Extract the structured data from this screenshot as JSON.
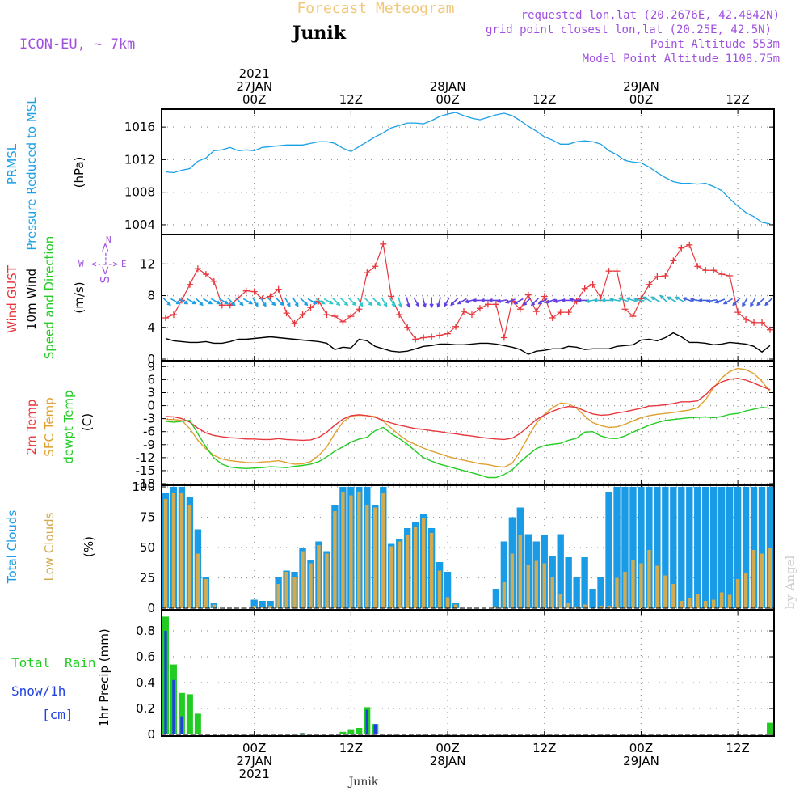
{
  "header": {
    "title": "Forecast Meteogram",
    "location": "Junik",
    "model": "ICON-EU, ~ 7km",
    "requested": "requested lon,lat (20.2676E, 42.4842N)",
    "gridpoint": "grid point closest lon,lat (20.25E, 42.5N)",
    "point_alt": "Point Altitude 553m",
    "model_alt": "Model Point Altitude 1108.75m",
    "footer_location": "Junik",
    "watermark": "by Angel"
  },
  "time_axis": {
    "top_labels": [
      {
        "h": 0,
        "lines": [
          "2021",
          "27JAN",
          "00Z"
        ]
      },
      {
        "h": 12,
        "lines": [
          "12Z"
        ]
      },
      {
        "h": 24,
        "lines": [
          "28JAN",
          "00Z"
        ]
      },
      {
        "h": 36,
        "lines": [
          "12Z"
        ]
      },
      {
        "h": 48,
        "lines": [
          "29JAN",
          "00Z"
        ]
      },
      {
        "h": 60,
        "lines": [
          "12Z"
        ]
      }
    ],
    "bottom_labels": [
      {
        "h": 0,
        "lines": [
          "00Z",
          "27JAN",
          "2021"
        ]
      },
      {
        "h": 12,
        "lines": [
          "12Z"
        ]
      },
      {
        "h": 24,
        "lines": [
          "00Z",
          "28JAN"
        ]
      },
      {
        "h": 36,
        "lines": [
          "12Z"
        ]
      },
      {
        "h": 48,
        "lines": [
          "00Z",
          "29JAN"
        ]
      },
      {
        "h": 60,
        "lines": [
          "12Z"
        ]
      }
    ],
    "start_hour": -11.5,
    "end_hour": 64.5
  },
  "colors": {
    "pressure": "#1aa0e6",
    "gust": "#e8373c",
    "wind": "#000000",
    "temp": "#e8373c",
    "sfc": "#e0a030",
    "dewpt": "#22cc22",
    "total_clouds": "#1a9be6",
    "low_clouds": "#d2aa50",
    "rain": "#22cc22",
    "snow": "#2040e0",
    "purple": "#a050e0",
    "orange_title": "#f2c878"
  },
  "chart_data": [
    {
      "type": "line",
      "name": "pressure",
      "labels": [
        "PRMSL",
        "Pressure Reduced to MSL",
        "(hPa)"
      ],
      "ylim": [
        1003,
        1018
      ],
      "yticks": [
        1004,
        1008,
        1012,
        1016
      ],
      "x": [
        -11,
        -10,
        -9,
        -8,
        -7,
        -6,
        -5,
        -4,
        -3,
        -2,
        -1,
        0,
        1,
        2,
        3,
        4,
        5,
        6,
        7,
        8,
        9,
        10,
        11,
        12,
        13,
        14,
        15,
        16,
        17,
        18,
        19,
        20,
        21,
        22,
        23,
        24,
        25,
        26,
        27,
        28,
        29,
        30,
        31,
        32,
        33,
        34,
        35,
        36,
        37,
        38,
        39,
        40,
        41,
        42,
        43,
        44,
        45,
        46,
        47,
        48,
        49,
        50,
        51,
        52,
        53,
        54,
        55,
        56,
        57,
        58,
        59,
        60,
        61,
        62,
        63,
        64
      ],
      "values": [
        1010.5,
        1010.4,
        1010.7,
        1010.9,
        1011.8,
        1012.2,
        1013.1,
        1013.2,
        1013.5,
        1013.1,
        1013.2,
        1013.1,
        1013.5,
        1013.6,
        1013.7,
        1013.8,
        1013.8,
        1013.8,
        1014.0,
        1014.2,
        1014.2,
        1014.0,
        1013.4,
        1013.0,
        1013.6,
        1014.2,
        1014.8,
        1015.3,
        1015.9,
        1016.2,
        1016.5,
        1016.5,
        1016.4,
        1016.8,
        1017.3,
        1017.6,
        1017.8,
        1017.4,
        1017.1,
        1016.9,
        1017.2,
        1017.5,
        1017.7,
        1017.4,
        1016.8,
        1016.1,
        1015.5,
        1014.8,
        1014.4,
        1013.9,
        1013.9,
        1014.2,
        1014.3,
        1014.2,
        1013.9,
        1013.1,
        1012.6,
        1011.9,
        1011.7,
        1011.6,
        1011.1,
        1010.4,
        1009.8,
        1009.3,
        1009.1,
        1009.1,
        1009.0,
        1009.1,
        1008.7,
        1008.2,
        1007.2,
        1006.3,
        1005.5,
        1005.0,
        1004.3,
        1004.1
      ]
    },
    {
      "type": "line",
      "name": "wind",
      "labels": [
        "Wind GUST",
        "10m Wind",
        "Speed and Direction",
        "(m/s)"
      ],
      "ylim": [
        0,
        15.5
      ],
      "yticks": [
        0,
        4,
        8,
        12
      ],
      "compass": {
        "north": "N",
        "south": "S",
        "west": "W",
        "east": "E"
      },
      "x": [
        -11,
        -10,
        -9,
        -8,
        -7,
        -6,
        -5,
        -4,
        -3,
        -2,
        -1,
        0,
        1,
        2,
        3,
        4,
        5,
        6,
        7,
        8,
        9,
        10,
        11,
        12,
        13,
        14,
        15,
        16,
        17,
        18,
        19,
        20,
        21,
        22,
        23,
        24,
        25,
        26,
        27,
        28,
        29,
        30,
        31,
        32,
        33,
        34,
        35,
        36,
        37,
        38,
        39,
        40,
        41,
        42,
        43,
        44,
        45,
        46,
        47,
        48,
        49,
        50,
        51,
        52,
        53,
        54,
        55,
        56,
        57,
        58,
        59,
        60,
        61,
        62,
        63,
        64
      ],
      "gust": [
        5.2,
        5.6,
        7.4,
        9.4,
        11.4,
        10.7,
        9.8,
        6.8,
        6.8,
        7.7,
        8.6,
        8.5,
        7.6,
        7.9,
        8.8,
        5.8,
        4.5,
        5.6,
        6.5,
        7.3,
        5.6,
        5.4,
        4.7,
        5.4,
        6.3,
        10.9,
        11.7,
        14.5,
        7.9,
        5.6,
        4.0,
        2.5,
        2.7,
        2.8,
        3.0,
        3.2,
        4.1,
        6.0,
        5.6,
        6.4,
        6.9,
        6.9,
        2.7,
        7.3,
        6.3,
        8.1,
        6.0,
        7.9,
        5.2,
        5.9,
        5.9,
        7.3,
        8.9,
        9.4,
        7.7,
        11.1,
        11.1,
        6.3,
        5.4,
        7.6,
        9.4,
        10.4,
        10.5,
        12.4,
        14.0,
        14.4,
        11.7,
        11.2,
        11.2,
        10.7,
        10.5,
        5.9,
        5.0,
        4.6,
        4.6,
        3.7
      ],
      "speed": [
        2.6,
        2.3,
        2.2,
        2.1,
        2.1,
        2.2,
        2.0,
        2.0,
        2.2,
        2.5,
        2.5,
        2.6,
        2.7,
        2.8,
        2.7,
        2.6,
        2.5,
        2.4,
        2.3,
        2.2,
        2.0,
        1.2,
        1.5,
        1.4,
        2.5,
        2.3,
        1.6,
        1.3,
        1.0,
        0.9,
        1.0,
        1.3,
        1.6,
        1.7,
        1.9,
        1.9,
        1.8,
        1.8,
        1.9,
        2.0,
        2.0,
        1.9,
        1.7,
        1.5,
        1.2,
        0.6,
        1.0,
        1.1,
        1.3,
        1.3,
        1.6,
        1.5,
        1.2,
        1.3,
        1.3,
        1.3,
        1.6,
        1.7,
        1.8,
        2.4,
        2.5,
        2.3,
        2.7,
        3.3,
        2.8,
        2.1,
        2.1,
        2.0,
        1.8,
        1.9,
        2.1,
        2.0,
        1.9,
        1.6,
        0.9,
        1.7
      ],
      "direction_deg": [
        315,
        300,
        300,
        300,
        315,
        300,
        300,
        300,
        315,
        315,
        300,
        330,
        330,
        315,
        315,
        330,
        330,
        315,
        300,
        300,
        300,
        315,
        315,
        315,
        330,
        315,
        315,
        330,
        330,
        345,
        345,
        330,
        345,
        0,
        15,
        30,
        45,
        60,
        75,
        90,
        90,
        90,
        80,
        70,
        60,
        45,
        45,
        60,
        70,
        80,
        90,
        100,
        90,
        80,
        90,
        90,
        100,
        110,
        110,
        100,
        120,
        120,
        135,
        120,
        120,
        110,
        100,
        90,
        80,
        70,
        60,
        45,
        30,
        30,
        45,
        45
      ]
    },
    {
      "type": "line",
      "name": "temperature",
      "labels": [
        "2m Temp",
        "SFC Temp",
        "dewpt Temp",
        "(C)"
      ],
      "ylim": [
        -18,
        10
      ],
      "yticks": [
        -18,
        -15,
        -12,
        -9,
        -6,
        -3,
        0,
        3,
        6,
        9
      ],
      "x": [
        -11,
        -10,
        -9,
        -8,
        -7,
        -6,
        -5,
        -4,
        -3,
        -2,
        -1,
        0,
        1,
        2,
        3,
        4,
        5,
        6,
        7,
        8,
        9,
        10,
        11,
        12,
        13,
        14,
        15,
        16,
        17,
        18,
        19,
        20,
        21,
        22,
        23,
        24,
        25,
        26,
        27,
        28,
        29,
        30,
        31,
        32,
        33,
        34,
        35,
        36,
        37,
        38,
        39,
        40,
        41,
        42,
        43,
        44,
        45,
        46,
        47,
        48,
        49,
        50,
        51,
        52,
        53,
        54,
        55,
        56,
        57,
        58,
        59,
        60,
        61,
        62,
        63,
        64
      ],
      "temp_2m": [
        -2.5,
        -2.6,
        -3.0,
        -3.8,
        -5.2,
        -6.3,
        -6.9,
        -7.2,
        -7.4,
        -7.5,
        -7.7,
        -7.7,
        -7.8,
        -7.8,
        -7.6,
        -7.8,
        -7.9,
        -8.0,
        -7.9,
        -7.3,
        -6.1,
        -4.5,
        -3.1,
        -2.3,
        -2.1,
        -2.3,
        -2.7,
        -3.4,
        -4.0,
        -4.5,
        -4.9,
        -5.3,
        -5.5,
        -5.8,
        -6.0,
        -6.3,
        -6.5,
        -6.8,
        -7.0,
        -7.3,
        -7.5,
        -7.7,
        -7.8,
        -7.5,
        -6.4,
        -4.8,
        -3.2,
        -2.2,
        -1.3,
        -0.6,
        -0.2,
        -0.4,
        -1.2,
        -1.9,
        -2.2,
        -2.1,
        -1.7,
        -1.4,
        -1.0,
        -0.6,
        -0.1,
        0.0,
        0.2,
        0.5,
        0.9,
        0.9,
        1.1,
        2.5,
        4.4,
        5.5,
        6.1,
        6.3,
        5.9,
        5.2,
        4.4,
        3.7
      ],
      "temp_sfc": [
        -3.2,
        -3.2,
        -3.4,
        -5.3,
        -8.0,
        -10.0,
        -11.5,
        -12.3,
        -12.7,
        -12.9,
        -13.1,
        -13.2,
        -13.0,
        -12.9,
        -12.7,
        -13.1,
        -13.5,
        -13.4,
        -12.9,
        -11.5,
        -9.5,
        -6.4,
        -3.8,
        -2.4,
        -2.2,
        -2.3,
        -2.5,
        -3.6,
        -5.2,
        -6.8,
        -8.1,
        -9.0,
        -9.8,
        -10.5,
        -11.1,
        -11.7,
        -12.2,
        -12.6,
        -13.0,
        -13.4,
        -13.6,
        -14.0,
        -14.2,
        -13.3,
        -10.5,
        -7.2,
        -4.0,
        -2.0,
        -0.5,
        0.6,
        0.4,
        -0.6,
        -2.4,
        -3.9,
        -4.6,
        -5.0,
        -4.9,
        -4.3,
        -3.5,
        -2.8,
        -2.3,
        -2.0,
        -1.8,
        -1.6,
        -1.3,
        -1.0,
        -0.5,
        1.4,
        4.1,
        6.4,
        7.9,
        8.6,
        8.3,
        7.4,
        5.6,
        3.3
      ],
      "dewpt": [
        -3.6,
        -3.8,
        -3.6,
        -3.4,
        -6.5,
        -9.5,
        -12.1,
        -13.5,
        -14.2,
        -14.4,
        -14.5,
        -14.4,
        -14.3,
        -14.1,
        -14.2,
        -14.3,
        -14.0,
        -13.8,
        -13.5,
        -12.9,
        -11.8,
        -10.5,
        -9.5,
        -8.4,
        -7.7,
        -7.3,
        -5.8,
        -5.0,
        -6.5,
        -7.6,
        -8.9,
        -10.5,
        -12.0,
        -12.8,
        -13.5,
        -14.0,
        -14.5,
        -15.0,
        -15.5,
        -16.0,
        -16.6,
        -16.6,
        -15.9,
        -14.8,
        -13.0,
        -11.4,
        -9.9,
        -9.2,
        -8.9,
        -8.7,
        -8.0,
        -7.5,
        -6.1,
        -6.0,
        -7.0,
        -7.5,
        -7.6,
        -7.0,
        -6.1,
        -5.3,
        -4.5,
        -3.9,
        -3.4,
        -3.2,
        -3.0,
        -2.8,
        -2.7,
        -2.6,
        -2.8,
        -2.5,
        -2.0,
        -1.8,
        -1.2,
        -0.8,
        -0.4,
        -0.6
      ]
    },
    {
      "type": "bar",
      "name": "clouds",
      "labels": [
        "Total Clouds",
        "Low Clouds",
        "(%)"
      ],
      "ylim": [
        0,
        100
      ],
      "yticks": [
        0,
        25,
        50,
        75,
        100
      ],
      "x": [
        -11,
        -10,
        -9,
        -8,
        -7,
        -6,
        -5,
        -4,
        -3,
        -2,
        -1,
        0,
        1,
        2,
        3,
        4,
        5,
        6,
        7,
        8,
        9,
        10,
        11,
        12,
        13,
        14,
        15,
        16,
        17,
        18,
        19,
        20,
        21,
        22,
        23,
        24,
        25,
        26,
        27,
        28,
        29,
        30,
        31,
        32,
        33,
        34,
        35,
        36,
        37,
        38,
        39,
        40,
        41,
        42,
        43,
        44,
        45,
        46,
        47,
        48,
        49,
        50,
        51,
        52,
        53,
        54,
        55,
        56,
        57,
        58,
        59,
        60,
        61,
        62,
        63,
        64
      ],
      "total": [
        95,
        100,
        100,
        92,
        65,
        26,
        4,
        0,
        0,
        0,
        0,
        7,
        6,
        6,
        26,
        31,
        30,
        50,
        40,
        55,
        47,
        85,
        100,
        100,
        100,
        100,
        85,
        100,
        53,
        57,
        66,
        71,
        78,
        66,
        38,
        30,
        4,
        0,
        0,
        0,
        0,
        16,
        55,
        75,
        83,
        61,
        55,
        60,
        43,
        61,
        42,
        26,
        42,
        16,
        26,
        96,
        100,
        100,
        100,
        100,
        100,
        100,
        100,
        100,
        100,
        100,
        100,
        100,
        100,
        100,
        100,
        100,
        100,
        100,
        100,
        100
      ],
      "low": [
        90,
        95,
        95,
        85,
        45,
        24,
        3,
        0,
        0,
        0,
        0,
        2,
        1,
        2,
        20,
        30,
        26,
        47,
        37,
        52,
        45,
        80,
        96,
        93,
        96,
        85,
        83,
        95,
        51,
        55,
        60,
        67,
        74,
        62,
        31,
        9,
        3,
        0,
        0,
        0,
        0,
        1,
        22,
        45,
        60,
        36,
        39,
        37,
        26,
        12,
        4,
        1,
        3,
        0,
        2,
        2,
        25,
        30,
        40,
        37,
        48,
        35,
        27,
        20,
        6,
        8,
        12,
        6,
        7,
        13,
        11,
        24,
        29,
        48,
        45,
        50
      ]
    },
    {
      "type": "bar",
      "name": "precipitation",
      "labels": [
        "Total Rain",
        "Snow/1h",
        "[cm]",
        "1hr Precip (mm)"
      ],
      "ylim": [
        0,
        0.95
      ],
      "yticks": [
        0,
        0.2,
        0.4,
        0.6,
        0.8
      ],
      "x": [
        -11,
        -10,
        -9,
        -8,
        -7,
        -6,
        6,
        11,
        12,
        13,
        14,
        15,
        64
      ],
      "rain": [
        0.91,
        0.54,
        0.32,
        0.31,
        0.16,
        0.0,
        0.01,
        0.02,
        0.04,
        0.05,
        0.21,
        0.08,
        0.09
      ],
      "snow": [
        0.8,
        0.42,
        0.14,
        0.0,
        0.0,
        0.0,
        0.01,
        0.0,
        0.0,
        0.0,
        0.19,
        0.08,
        0.0
      ]
    }
  ]
}
